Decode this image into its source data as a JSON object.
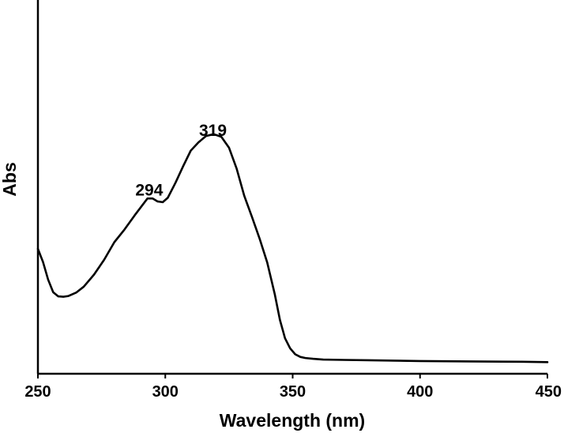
{
  "chart_data": {
    "type": "line",
    "xlabel": "Wavelength (nm)",
    "ylabel": "Abs",
    "xlim": [
      250,
      450
    ],
    "ylim": [
      0,
      1
    ],
    "x_ticks": [
      250,
      300,
      350,
      400,
      450
    ],
    "y_ticks": [],
    "grid": false,
    "legend": "none",
    "annotations": [
      {
        "text": "294",
        "x": 294,
        "y": 0.5
      },
      {
        "text": "319",
        "x": 319,
        "y": 0.66
      }
    ],
    "series": [
      {
        "color": "#000000",
        "x": [
          250,
          252,
          254,
          256,
          258,
          260,
          262,
          265,
          268,
          272,
          276,
          280,
          284,
          288,
          291,
          293,
          295,
          297,
          299,
          301,
          304,
          307,
          310,
          313,
          316,
          319,
          322,
          325,
          328,
          331,
          334,
          337,
          340,
          343,
          345,
          347,
          349,
          351,
          353,
          355,
          358,
          362,
          370,
          380,
          390,
          400,
          420,
          440,
          450
        ],
        "y": [
          0.334,
          0.299,
          0.252,
          0.218,
          0.207,
          0.206,
          0.208,
          0.217,
          0.233,
          0.265,
          0.305,
          0.352,
          0.386,
          0.424,
          0.451,
          0.469,
          0.469,
          0.461,
          0.459,
          0.471,
          0.511,
          0.555,
          0.597,
          0.619,
          0.636,
          0.641,
          0.634,
          0.605,
          0.549,
          0.476,
          0.42,
          0.362,
          0.298,
          0.212,
          0.144,
          0.095,
          0.068,
          0.052,
          0.045,
          0.042,
          0.04,
          0.038,
          0.037,
          0.036,
          0.035,
          0.034,
          0.033,
          0.032,
          0.031
        ]
      }
    ]
  }
}
